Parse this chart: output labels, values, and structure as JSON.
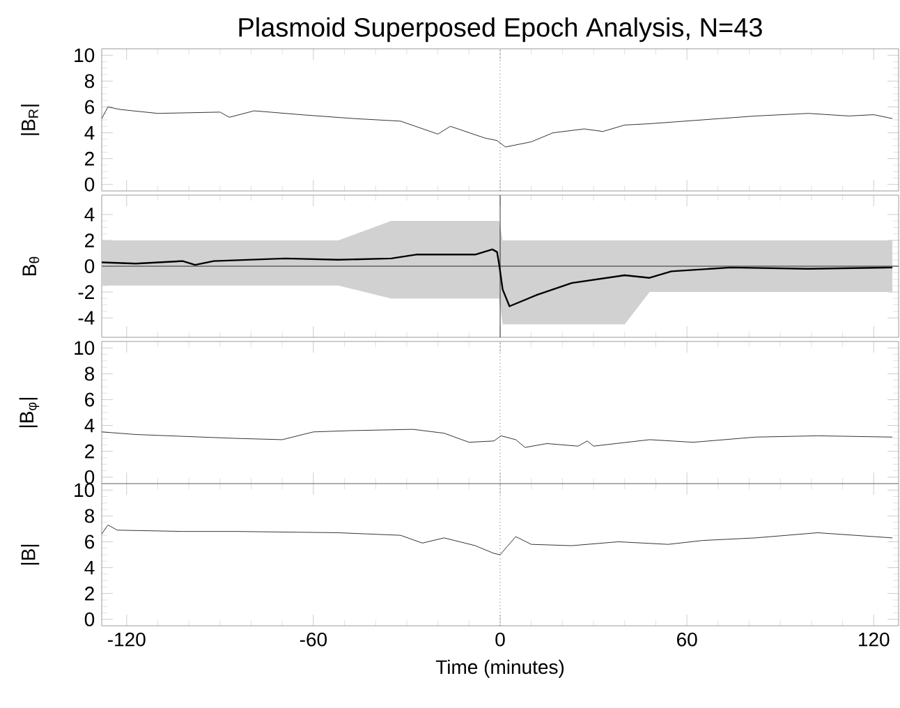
{
  "chart_data": [
    {
      "type": "line",
      "title": "Plasmoid Superposed Epoch Analysis, N=43",
      "ylabel": "|B$_{R}$|",
      "xlim": [
        -128,
        128
      ],
      "ylim": [
        -0.5,
        10.5
      ],
      "xticks": [
        -120,
        -60,
        0,
        60,
        120
      ],
      "yticks": [
        0,
        2,
        4,
        6,
        8,
        10
      ],
      "tick_labels": "y",
      "ref_lines": [
        {
          "axis": "x",
          "value": 0,
          "line_style": "dotted",
          "color": "#000000"
        }
      ],
      "x": [
        -128,
        -126,
        -122,
        -110,
        -90,
        -87,
        -79,
        -64,
        -47,
        -32,
        -20,
        -16,
        -5,
        -1,
        1.7,
        10,
        17,
        27,
        33,
        40,
        48,
        65,
        82,
        99,
        112,
        120,
        126
      ],
      "series": [
        {
          "color": "#000000",
          "values": [
            5.1,
            6.0,
            5.8,
            5.5,
            5.6,
            5.2,
            5.7,
            5.4,
            5.1,
            4.9,
            3.9,
            4.5,
            3.6,
            3.4,
            2.9,
            3.3,
            4.0,
            4.3,
            4.1,
            4.6,
            4.7,
            5.0,
            5.3,
            5.5,
            5.3,
            5.4,
            5.1
          ]
        }
      ]
    },
    {
      "type": "line",
      "ylabel": "B$_{θ}$",
      "xlim": [
        -128,
        128
      ],
      "ylim": [
        -5.5,
        5.5
      ],
      "xticks": [
        -120,
        -60,
        0,
        60,
        120
      ],
      "yticks": [
        -4,
        -2,
        0,
        2,
        4
      ],
      "tick_labels": "y",
      "ref_lines": [
        {
          "axis": "x",
          "value": 0,
          "line_style": "solid",
          "color": "#000000"
        },
        {
          "axis": "y",
          "value": 0,
          "line_style": "solid",
          "color": "#000000"
        }
      ],
      "x": [
        -128,
        -117,
        -102,
        -98,
        -92,
        -69,
        -52,
        -35,
        -27,
        -8,
        -2.5,
        -1,
        -0.3,
        0.8,
        3,
        12,
        23,
        40,
        48,
        55,
        74,
        99,
        126
      ],
      "series": [
        {
          "color": "#000000",
          "values": [
            0.3,
            0.2,
            0.4,
            0.1,
            0.4,
            0.6,
            0.5,
            0.6,
            0.9,
            0.9,
            1.3,
            1.1,
            0.1,
            -1.8,
            -3.1,
            -2.2,
            -1.3,
            -0.7,
            -0.9,
            -0.4,
            -0.1,
            -0.2,
            -0.1
          ],
          "lower": [
            -1.5,
            -1.5,
            -1.5,
            -1.5,
            -1.5,
            -1.5,
            -1.5,
            -2.5,
            -2.5,
            -2.5,
            -2.5,
            -2.5,
            -2.5,
            -4.5,
            -4.5,
            -4.5,
            -4.5,
            -4.5,
            -2,
            -2,
            -2,
            -2,
            -2
          ],
          "upper": [
            2,
            2,
            2,
            2,
            2,
            2,
            2,
            3.5,
            3.5,
            3.5,
            3.5,
            3.5,
            3.5,
            2,
            2,
            2,
            2,
            2,
            2,
            2,
            2,
            2,
            2
          ]
        }
      ]
    },
    {
      "type": "line",
      "ylabel": "|B$_{φ}$|",
      "xlim": [
        -128,
        128
      ],
      "ylim": [
        -0.5,
        10.5
      ],
      "xticks": [
        -120,
        -60,
        0,
        60,
        120
      ],
      "yticks": [
        0,
        2,
        4,
        6,
        8,
        10
      ],
      "tick_labels": "y",
      "ref_lines": [
        {
          "axis": "x",
          "value": 0,
          "line_style": "dotted",
          "color": "#000000"
        }
      ],
      "x": [
        -128,
        -117,
        -85,
        -70,
        -60,
        -48,
        -28,
        -18,
        -10,
        -2,
        0.3,
        5,
        8,
        15,
        25,
        28,
        30,
        48,
        62,
        82,
        102,
        126
      ],
      "series": [
        {
          "color": "#000000",
          "values": [
            3.5,
            3.3,
            3.0,
            2.9,
            3.5,
            3.6,
            3.7,
            3.4,
            2.7,
            2.8,
            3.2,
            2.9,
            2.3,
            2.6,
            2.4,
            2.8,
            2.4,
            2.9,
            2.7,
            3.1,
            3.2,
            3.1
          ]
        }
      ]
    },
    {
      "type": "line",
      "ylabel": "|B|",
      "xlabel": "Time (minutes)",
      "xlim": [
        -128,
        128
      ],
      "ylim": [
        -0.5,
        10.5
      ],
      "xticks": [
        -120,
        -60,
        0,
        60,
        120
      ],
      "yticks": [
        0,
        2,
        4,
        6,
        8,
        10
      ],
      "ref_lines": [
        {
          "axis": "x",
          "value": 0,
          "line_style": "dotted",
          "color": "#000000"
        }
      ],
      "x": [
        -128,
        -126,
        -123,
        -102,
        -85,
        -52,
        -32,
        -25,
        -18,
        -8,
        -2,
        0,
        5,
        10,
        23,
        38,
        54,
        65,
        82,
        102,
        126
      ],
      "series": [
        {
          "color": "#000000",
          "values": [
            6.6,
            7.3,
            6.9,
            6.8,
            6.8,
            6.7,
            6.5,
            5.9,
            6.3,
            5.7,
            5.1,
            5.0,
            6.4,
            5.8,
            5.7,
            6.0,
            5.8,
            6.1,
            6.3,
            6.7,
            6.3
          ]
        }
      ]
    }
  ]
}
